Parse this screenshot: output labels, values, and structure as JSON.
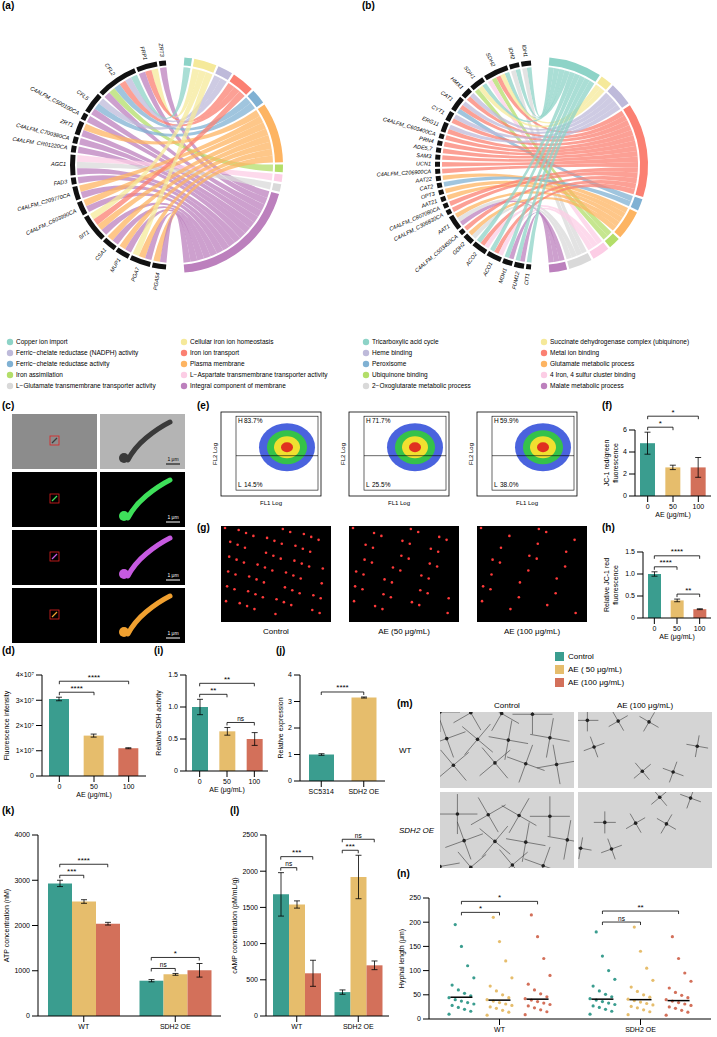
{
  "chart_data": [
    {
      "type": "chord",
      "panel": "(a)",
      "genes": [
        "ZRT3",
        "FRP1",
        "CFL2",
        "CFL5",
        "C4ALFM_C500100CA",
        "ZRT1",
        "C4ALFM_C700380CA",
        "C4ALFM_CR01220CA",
        "AGC1",
        "FAD3",
        "C4ALFM_C209770CA",
        "C4ALFM_C603990CA",
        "SIT1",
        "CSA1",
        "MUP1",
        "PGA7",
        "PGA54"
      ],
      "terms": [
        {
          "name": "Copper ion import",
          "color": "#8dd3c7"
        },
        {
          "name": "Cellular iron ion homeostasis",
          "color": "#f5e99a"
        },
        {
          "name": "Ferric−chelate reductase (NADPH) activity",
          "color": "#bebada"
        },
        {
          "name": "Iron ion transport",
          "color": "#fb8072"
        },
        {
          "name": "Ferric−chelate reductase activity",
          "color": "#80b1d3"
        },
        {
          "name": "Plasma membrane",
          "color": "#fdb462"
        },
        {
          "name": "Iron assimilation",
          "color": "#b3de69"
        },
        {
          "name": "L−Aspartate transmembrane transporter activity",
          "color": "#fccde5"
        },
        {
          "name": "L−Glutamate transmembrane transporter activity",
          "color": "#d9d9d9"
        },
        {
          "name": "Integral component of membrane",
          "color": "#bc80bd"
        }
      ],
      "links": [
        [
          9
        ],
        [
          1,
          3,
          9
        ],
        [
          0,
          2,
          3,
          4,
          6,
          9
        ],
        [
          2,
          4,
          9
        ],
        [
          9
        ],
        [
          5,
          9
        ],
        [
          9
        ],
        [
          9
        ],
        [
          7,
          8,
          9
        ],
        [
          9
        ],
        [
          5,
          9
        ],
        [
          5,
          9
        ],
        [
          1,
          3,
          5,
          9
        ],
        [
          5,
          9
        ],
        [
          5,
          9
        ],
        [
          1,
          5,
          9
        ],
        [
          5,
          9
        ]
      ]
    },
    {
      "type": "chord",
      "panel": "(b)",
      "genes": [
        "IDH1",
        "IDH2",
        "SDH2",
        "SDH1",
        "HMX1",
        "CAT1",
        "CYT1",
        "ERG11",
        "C4ALFM_C603400CA",
        "PRN4",
        "ADE5,7",
        "SAM3",
        "UCN1",
        "C4ALFM_C206900CA",
        "AAT22",
        "CAT2",
        "OPT3",
        "AAT21",
        "C4ALFM_C807080CA",
        "C4ALFM_C306830CA",
        "AAT1",
        "C4ALFM_C503450CA",
        "GDH2",
        "ACO2",
        "ACO1",
        "MDH1",
        "FUM12",
        "CIT1"
      ],
      "terms": [
        {
          "name": "Tricarboxylic acid cycle",
          "color": "#8dd3c7"
        },
        {
          "name": "Succinate dehydrogenase complex (ubiquinone)",
          "color": "#f5e99a"
        },
        {
          "name": "Heme binding",
          "color": "#bebada"
        },
        {
          "name": "Metal ion binding",
          "color": "#fb8072"
        },
        {
          "name": "Peroxisome",
          "color": "#80b1d3"
        },
        {
          "name": "Glutamate metabolic process",
          "color": "#fdb462"
        },
        {
          "name": "Ubiquinone binding",
          "color": "#b3de69"
        },
        {
          "name": "4 Iron, 4 sulfur cluster binding",
          "color": "#fccde5"
        },
        {
          "name": "2−Oxoglutarate metabolic process",
          "color": "#d9d9d9"
        },
        {
          "name": "Malate metabolic process",
          "color": "#bc80bd"
        }
      ],
      "links": [
        [
          0,
          8
        ],
        [
          0,
          8
        ],
        [
          0,
          1,
          3,
          6,
          7
        ],
        [
          0,
          1,
          6
        ],
        [
          2,
          3
        ],
        [
          2,
          3,
          4
        ],
        [
          2,
          3
        ],
        [
          2,
          3
        ],
        [
          3
        ],
        [
          3
        ],
        [
          3
        ],
        [
          3
        ],
        [
          3
        ],
        [
          3
        ],
        [
          5
        ],
        [
          4
        ],
        [
          5
        ],
        [
          5
        ],
        [
          3
        ],
        [
          3
        ],
        [
          5,
          8,
          9
        ],
        [
          3
        ],
        [
          5,
          8
        ],
        [
          0,
          3,
          7
        ],
        [
          0,
          3,
          7
        ],
        [
          0,
          9
        ],
        [
          0,
          9
        ],
        [
          0
        ]
      ]
    },
    {
      "type": "image",
      "panel": "(c)",
      "scale_bar": "1 μm"
    },
    {
      "type": "bar",
      "panel": "(d)",
      "categories": [
        "0",
        "50",
        "100"
      ],
      "values": [
        30500000,
        16000000,
        11000000
      ],
      "errors": [
        700000,
        600000,
        200000
      ],
      "colors": [
        "#3a9d8f",
        "#e6bd6c",
        "#d3705a"
      ],
      "x_label": "AE (μg/mL)",
      "y_label": "Fluorescence intensity",
      "ylim": [
        0,
        40000000
      ],
      "yticks": [
        0,
        {
          "value": 10000000,
          "label": "1×10⁷"
        },
        {
          "value": 20000000,
          "label": "2×10⁷"
        },
        {
          "value": 30000000,
          "label": "3×10⁷"
        },
        {
          "value": 40000000,
          "label": "4×10⁷"
        }
      ],
      "significance": [
        {
          "from": 0,
          "to": 1,
          "label": "****"
        },
        {
          "from": 0,
          "to": 2,
          "label": "****"
        }
      ]
    },
    {
      "type": "flow_cytometry",
      "panel": "(e)",
      "x_label": "FL1 Log",
      "y_label": "FL2 Log",
      "plots": [
        {
          "gates": [
            {
              "name": "H",
              "label": "83.7%"
            },
            {
              "name": "L",
              "label": "14.5%"
            }
          ]
        },
        {
          "gates": [
            {
              "name": "H",
              "label": "71.7%"
            },
            {
              "name": "L",
              "label": "25.5%"
            }
          ]
        },
        {
          "gates": [
            {
              "name": "H",
              "label": "59.9%"
            },
            {
              "name": "L",
              "label": "38.0%"
            }
          ]
        }
      ]
    },
    {
      "type": "bar",
      "panel": "(f)",
      "categories": [
        "0",
        "50",
        "100"
      ],
      "values": [
        4.8,
        2.6,
        2.6
      ],
      "errors": [
        1.0,
        0.2,
        0.9
      ],
      "colors": [
        "#3a9d8f",
        "#e6bd6c",
        "#d3705a"
      ],
      "x_label": "AE (μg/mL)",
      "y_label": "JC-1 red/green fluorescence",
      "ylim": [
        0,
        6
      ],
      "yticks": [
        0,
        2,
        4,
        6
      ],
      "significance": [
        {
          "from": 0,
          "to": 1,
          "label": "*"
        },
        {
          "from": 0,
          "to": 2,
          "label": "*"
        }
      ]
    },
    {
      "type": "image",
      "panel": "(g)",
      "captions": [
        "Control",
        "AE (50 μg/mL)",
        "AE (100 μg/mL)"
      ]
    },
    {
      "type": "bar",
      "panel": "(h)",
      "categories": [
        "0",
        "50",
        "100"
      ],
      "values": [
        1.0,
        0.4,
        0.2
      ],
      "errors": [
        0.05,
        0.03,
        0.01
      ],
      "colors": [
        "#3a9d8f",
        "#e6bd6c",
        "#d3705a"
      ],
      "x_label": "AE (μg/mL)",
      "y_label": "Relative JC-1 red fluorescence",
      "ylim": [
        0,
        1.5
      ],
      "yticks": [
        0,
        0.5,
        {
          "value": 1,
          "label": "1.0"
        },
        1.5
      ],
      "significance": [
        {
          "from": 0,
          "to": 1,
          "label": "****"
        },
        {
          "from": 1,
          "to": 2,
          "label": "**"
        },
        {
          "from": 0,
          "to": 2,
          "label": "****"
        }
      ]
    },
    {
      "type": "bar",
      "panel": "(i)",
      "categories": [
        "0",
        "50",
        "100"
      ],
      "values": [
        1.0,
        0.62,
        0.5
      ],
      "errors": [
        0.12,
        0.06,
        0.1
      ],
      "colors": [
        "#3a9d8f",
        "#e6bd6c",
        "#d3705a"
      ],
      "x_label": "AE (μg/mL)",
      "y_label": "Relative SDH activity",
      "ylim": [
        0,
        1.5
      ],
      "yticks": [
        0,
        0.5,
        {
          "value": 1,
          "label": "1.0"
        },
        1.5
      ],
      "significance": [
        {
          "from": 0,
          "to": 1,
          "label": "**"
        },
        {
          "from": 1,
          "to": 2,
          "label": "ns"
        },
        {
          "from": 0,
          "to": 2,
          "label": "**"
        }
      ]
    },
    {
      "type": "bar",
      "panel": "(j)",
      "categories": [
        "SC5314",
        "SDH2 OE"
      ],
      "values": [
        1.0,
        3.15
      ],
      "errors": [
        0.03,
        0.02
      ],
      "colors": [
        "#3a9d8f",
        "#e6bd6c"
      ],
      "y_label": "Relative expression",
      "ylim": [
        0,
        4
      ],
      "yticks": [
        0,
        1,
        2,
        3,
        4
      ],
      "significance": [
        {
          "from": 0,
          "to": 1,
          "label": "****"
        }
      ]
    },
    {
      "type": "bar",
      "panel": "(k)",
      "categories": [
        "WT",
        "SDH2 OE"
      ],
      "series": [
        {
          "name": "Control",
          "color": "#3a9d8f",
          "values": [
            2930,
            780
          ],
          "errors": [
            70,
            25
          ]
        },
        {
          "name": "AE ( 50 μg/mL)",
          "color": "#e6bd6c",
          "values": [
            2530,
            920
          ],
          "errors": [
            40,
            20
          ]
        },
        {
          "name": "AE (100 μg/mL)",
          "color": "#d3705a",
          "values": [
            2040,
            1010
          ],
          "errors": [
            30,
            150
          ]
        }
      ],
      "y_label": "ATP concentration (nM)",
      "ylim": [
        0,
        4000
      ],
      "yticks": [
        0,
        1000,
        2000,
        3000,
        4000
      ],
      "significance": [
        {
          "category": 0,
          "from": 0,
          "to": 1,
          "label": "***"
        },
        {
          "category": 0,
          "from": 0,
          "to": 2,
          "label": "****"
        },
        {
          "category": 1,
          "from": 0,
          "to": 1,
          "label": "ns"
        },
        {
          "category": 1,
          "from": 0,
          "to": 2,
          "label": "*"
        }
      ]
    },
    {
      "type": "bar",
      "panel": "(l)",
      "categories": [
        "WT",
        "SDH2 OE"
      ],
      "series": [
        {
          "name": "Control",
          "color": "#3a9d8f",
          "values": [
            1680,
            330
          ],
          "errors": [
            300,
            30
          ]
        },
        {
          "name": "AE ( 50 μg/mL)",
          "color": "#e6bd6c",
          "values": [
            1540,
            1920
          ],
          "errors": [
            50,
            300
          ]
        },
        {
          "name": "AE (100 μg/mL)",
          "color": "#d3705a",
          "values": [
            590,
            700
          ],
          "errors": [
            180,
            60
          ]
        }
      ],
      "y_label": "cAMP concentration (pM/mL/g)",
      "ylim": [
        0,
        2500
      ],
      "yticks": [
        0,
        500,
        1000,
        1500,
        2000,
        2500
      ],
      "significance": [
        {
          "category": 0,
          "from": 0,
          "to": 1,
          "label": "ns"
        },
        {
          "category": 0,
          "from": 0,
          "to": 2,
          "label": "***"
        },
        {
          "category": 1,
          "from": 0,
          "to": 1,
          "label": "***"
        },
        {
          "category": 1,
          "from": 0,
          "to": 2,
          "label": "ns"
        }
      ]
    },
    {
      "type": "image",
      "panel": "(m)",
      "columns": [
        "Control",
        "AE (100 μg/mL)"
      ],
      "rows": [
        "WT",
        "SDH2 OE"
      ]
    },
    {
      "type": "scatter",
      "panel": "(n)",
      "categories": [
        "WT",
        "SDH2 OE"
      ],
      "series": [
        {
          "name": "Control",
          "color": "#3a9d8f",
          "values": [
            [
              10,
              16,
              20,
              24,
              28,
              31,
              34,
              37,
              40,
              44,
              48,
              53,
              60,
              70,
              85,
              110,
              150,
              195
            ],
            [
              10,
              16,
              20,
              24,
              27,
              30,
              33,
              36,
              39,
              42,
              46,
              51,
              58,
              68,
              82,
              100,
              130,
              180
            ]
          ],
          "means": [
            45,
            41
          ]
        },
        {
          "name": "AE ( 50 μg/mL)",
          "color": "#e6bd6c",
          "values": [
            [
              8,
              14,
              18,
              22,
              25,
              28,
              31,
              34,
              37,
              40,
              44,
              50,
              58,
              68,
              85,
              120,
              160,
              210
            ],
            [
              9,
              15,
              19,
              23,
              26,
              29,
              32,
              35,
              38,
              41,
              45,
              50,
              57,
              66,
              80,
              105,
              140,
              190
            ]
          ],
          "means": [
            39,
            40
          ]
        },
        {
          "name": "AE (100 μg/mL)",
          "color": "#d3705a",
          "values": [
            [
              9,
              15,
              19,
              23,
              27,
              30,
              33,
              36,
              39,
              42,
              46,
              52,
              60,
              72,
              90,
              125,
              170,
              215
            ],
            [
              8,
              14,
              18,
              22,
              25,
              28,
              31,
              34,
              37,
              40,
              44,
              49,
              55,
              64,
              78,
              95,
              125,
              170
            ]
          ],
          "means": [
            41,
            38
          ]
        }
      ],
      "y_label": "Hyphal length (μm)",
      "ylim": [
        0,
        250
      ],
      "yticks": [
        0,
        50,
        100,
        150,
        200,
        250
      ],
      "significance": [
        {
          "category": 0,
          "from": 0,
          "to": 1,
          "label": "*"
        },
        {
          "category": 0,
          "from": 0,
          "to": 2,
          "label": "*"
        },
        {
          "category": 1,
          "from": 0,
          "to": 1,
          "label": "ns"
        },
        {
          "category": 1,
          "from": 0,
          "to": 2,
          "label": "**"
        }
      ]
    }
  ]
}
